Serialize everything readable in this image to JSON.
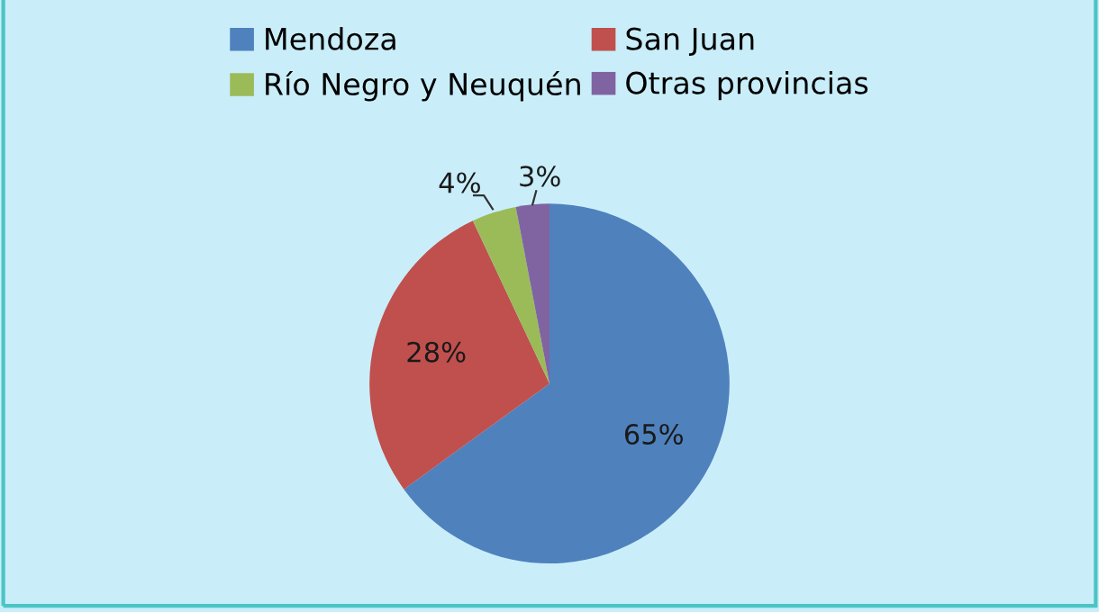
{
  "chart_data": {
    "type": "pie",
    "categories": [
      "Mendoza",
      "San Juan",
      "Río Negro y Neuquén",
      "Otras provincias"
    ],
    "values": [
      65,
      28,
      4,
      3
    ],
    "colors": [
      "#4f81bd",
      "#c0504d",
      "#9bbb59",
      "#8064a2"
    ],
    "value_labels": [
      "65%",
      "28%",
      "4%",
      "3%"
    ],
    "legend": "top"
  }
}
